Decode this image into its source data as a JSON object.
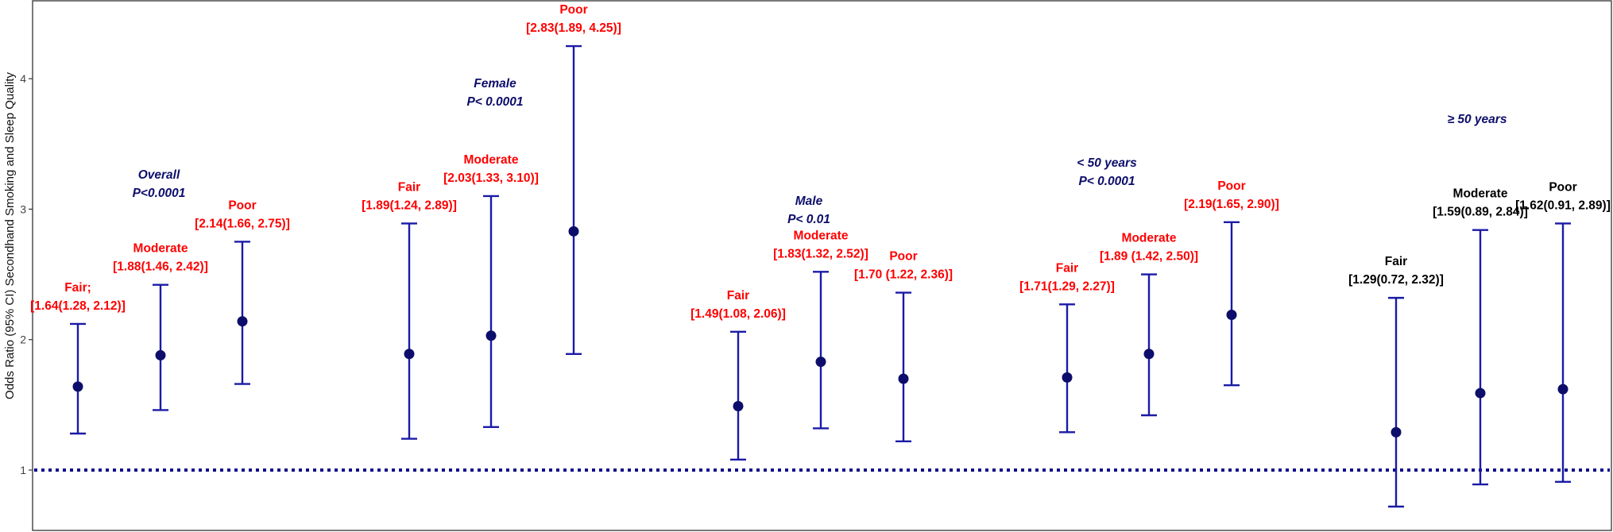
{
  "colors": {
    "marker": "#0d0d6b",
    "errorbar": "#1a1aa6",
    "refline": "#0d0d8a",
    "label_red": "#ff0000",
    "label_black": "#000000",
    "group_label": "#0d0d6b",
    "axis": "#333333"
  },
  "chart_data": {
    "type": "scatter",
    "ylabel": "Odds Ratio (95% CI)  Secondhand Smoking and Sleep Quality",
    "ylim": [
      0.45,
      4.5
    ],
    "yticks": [
      1,
      2,
      3,
      4
    ],
    "reference_line": 1,
    "grid": false,
    "groups": [
      {
        "label_lines": [
          "Overall",
          "P<0.0001"
        ]
      },
      {
        "label_lines": [
          "Female",
          "P< 0.0001"
        ]
      },
      {
        "label_lines": [
          "Male",
          "P< 0.01"
        ]
      },
      {
        "label_lines": [
          "< 50 years",
          "P< 0.0001"
        ]
      },
      {
        "label_lines": [
          "≥ 50 years"
        ]
      }
    ],
    "points": [
      {
        "category": "Fair;",
        "ci_label": "[1.64(1.28, 2.12)]",
        "or": 1.64,
        "lower": 1.28,
        "upper": 2.12,
        "label_color": "red"
      },
      {
        "category": "Moderate",
        "ci_label": "[1.88(1.46, 2.42)]",
        "or": 1.88,
        "lower": 1.46,
        "upper": 2.42,
        "label_color": "red"
      },
      {
        "category": "Poor",
        "ci_label": "[2.14(1.66, 2.75)]",
        "or": 2.14,
        "lower": 1.66,
        "upper": 2.75,
        "label_color": "red"
      },
      {
        "category": "Fair",
        "ci_label": "[1.89(1.24, 2.89)]",
        "or": 1.89,
        "lower": 1.24,
        "upper": 2.89,
        "label_color": "red"
      },
      {
        "category": "Moderate",
        "ci_label": "[2.03(1.33, 3.10)]",
        "or": 2.03,
        "lower": 1.33,
        "upper": 3.1,
        "label_color": "red"
      },
      {
        "category": "Poor",
        "ci_label": "[2.83(1.89, 4.25)]",
        "or": 2.83,
        "lower": 1.89,
        "upper": 4.25,
        "label_color": "red"
      },
      {
        "category": "Fair",
        "ci_label": "[1.49(1.08, 2.06)]",
        "or": 1.49,
        "lower": 1.08,
        "upper": 2.06,
        "label_color": "red"
      },
      {
        "category": "Moderate",
        "ci_label": "[1.83(1.32, 2.52)]",
        "or": 1.83,
        "lower": 1.32,
        "upper": 2.52,
        "label_color": "red"
      },
      {
        "category": "Poor",
        "ci_label": "[1.70 (1.22, 2.36)]",
        "or": 1.7,
        "lower": 1.22,
        "upper": 2.36,
        "label_color": "red"
      },
      {
        "category": "Fair",
        "ci_label": "[1.71(1.29, 2.27)]",
        "or": 1.71,
        "lower": 1.29,
        "upper": 2.27,
        "label_color": "red"
      },
      {
        "category": "Moderate",
        "ci_label": "[1.89 (1.42, 2.50)]",
        "or": 1.89,
        "lower": 1.42,
        "upper": 2.5,
        "label_color": "red"
      },
      {
        "category": "Poor",
        "ci_label": "[2.19(1.65, 2.90)]",
        "or": 2.19,
        "lower": 1.65,
        "upper": 2.9,
        "label_color": "red"
      },
      {
        "category": "Fair",
        "ci_label": "[1.29(0.72, 2.32)]",
        "or": 1.29,
        "lower": 0.72,
        "upper": 2.32,
        "label_color": "black"
      },
      {
        "category": "Moderate",
        "ci_label": "[1.59(0.89, 2.84)]",
        "or": 1.59,
        "lower": 0.89,
        "upper": 2.84,
        "label_color": "black"
      },
      {
        "category": "Poor",
        "ci_label": "[1.62(0.91, 2.89)]",
        "or": 1.62,
        "lower": 0.91,
        "upper": 2.89,
        "label_color": "black"
      }
    ]
  }
}
